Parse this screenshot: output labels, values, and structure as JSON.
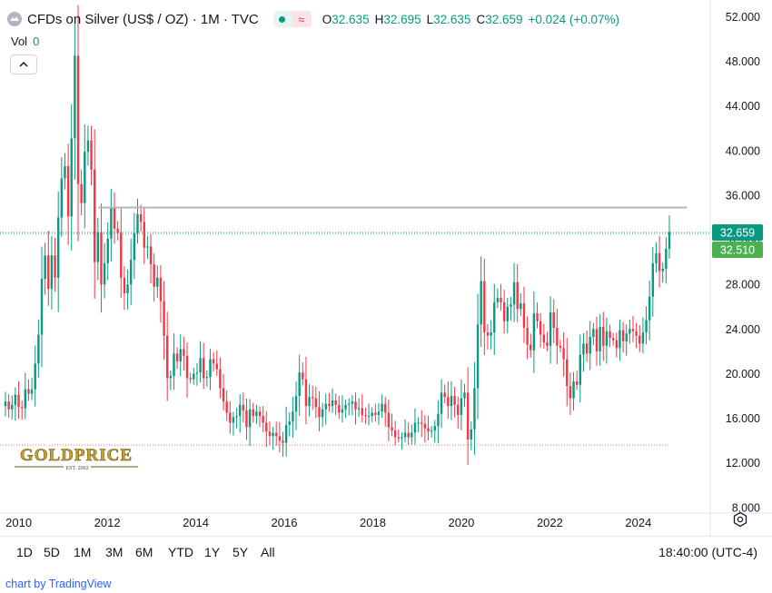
{
  "header": {
    "title": "CFDs on Silver (US$ / OZ) · 1M · TVC",
    "ohlc": [
      {
        "k": "O",
        "v": "32.635"
      },
      {
        "k": "H",
        "v": "32.695"
      },
      {
        "k": "L",
        "v": "32.635"
      },
      {
        "k": "C",
        "v": "32.659"
      },
      {
        "k": "",
        "v": "+0.024 (+0.07%)"
      }
    ],
    "approx_glyph": "≈"
  },
  "volume": {
    "label": "Vol",
    "value": "0"
  },
  "colors": {
    "up": "#089981",
    "down": "#f23645",
    "grid": "#f0f3fa",
    "text": "#131722",
    "accent": "#2962ff"
  },
  "chart_data": {
    "type": "candlestick",
    "xlabel": "",
    "ylabel": "",
    "ylim": [
      7.5,
      53.5
    ],
    "y_ticks": [
      "52.000",
      "48.000",
      "44.000",
      "40.000",
      "36.000",
      "32.000",
      "28.000",
      "24.000",
      "20.000",
      "16.000",
      "12.000",
      "8.000"
    ],
    "x_ticks": [
      "2010",
      "2012",
      "2014",
      "2016",
      "2018",
      "2020",
      "2022",
      "2024"
    ],
    "grid": false,
    "close_series": [
      17.5,
      16.8,
      17.2,
      18.1,
      17.0,
      16.9,
      18.6,
      18.2,
      18.6,
      20.9,
      23.5,
      28.5,
      30.6,
      27.6,
      30.6,
      28.6,
      34.0,
      37.5,
      38.6,
      34.1,
      41.1,
      48.5,
      37.0,
      35.3,
      39.9,
      40.9,
      38.3,
      30.0,
      32.7,
      28.0,
      29.9,
      32.1,
      34.9,
      33.0,
      32.6,
      28.6,
      27.2,
      28.0,
      30.2,
      32.6,
      34.3,
      33.6,
      31.3,
      31.4,
      29.8,
      27.8,
      28.6,
      26.5,
      23.4,
      19.6,
      19.8,
      21.8,
      21.1,
      22.2,
      21.6,
      19.6,
      19.5,
      20.0,
      20.1,
      21.4,
      19.6,
      19.7,
      21.3,
      20.9,
      20.4,
      18.7,
      17.5,
      16.5,
      15.6,
      16.1,
      16.2,
      17.2,
      16.7,
      15.2,
      16.8,
      16.2,
      16.6,
      16.2,
      15.6,
      14.8,
      14.4,
      14.7,
      14.4,
      14.0,
      13.8,
      15.4,
      15.7,
      16.6,
      18.0,
      20.1,
      19.5,
      17.1,
      17.9,
      17.8,
      17.0,
      16.1,
      16.8,
      17.3,
      17.1,
      17.6,
      17.2,
      16.5,
      16.8,
      17.2,
      17.3,
      17.5,
      16.8,
      16.9,
      16.3,
      16.2,
      16.2,
      16.5,
      16.3,
      16.6,
      17.3,
      16.5,
      15.2,
      14.9,
      14.3,
      14.2,
      14.3,
      14.7,
      14.3,
      14.7,
      15.6,
      15.6,
      15.5,
      15.1,
      14.8,
      14.9,
      15.3,
      16.4,
      18.3,
      17.9,
      17.1,
      18.0,
      17.2,
      16.3,
      17.8,
      18.3,
      14.1,
      15.0,
      18.7,
      24.4,
      28.3,
      23.7,
      23.4,
      23.7,
      26.4,
      26.8,
      26.4,
      24.7,
      26.0,
      26.2,
      28.2,
      25.8,
      26.3,
      24.1,
      22.6,
      22.1,
      25.4,
      24.7,
      23.5,
      22.8,
      22.5,
      25.5,
      24.1,
      22.5,
      22.3,
      21.3,
      18.9,
      17.8,
      19.3,
      19.0,
      21.7,
      22.7,
      21.8,
      23.3,
      24.0,
      22.0,
      24.2,
      22.5,
      23.8,
      23.2,
      23.0,
      22.3,
      23.9,
      22.9,
      23.6,
      24.0,
      23.8,
      23.4,
      22.7,
      23.7,
      24.8,
      26.9,
      29.9,
      30.8,
      29.2,
      29.4,
      31.2,
      32.7
    ]
  },
  "range_buttons": [
    "1D",
    "5D",
    "1M",
    "3M",
    "6M",
    "YTD",
    "1Y",
    "5Y",
    "All"
  ],
  "clock": "18:40:00 (UTC-4)",
  "price_labels": {
    "current": "32.659",
    "prev": "32.510"
  },
  "logo": {
    "text": "GOLDPRICE",
    "sub": "EST. 2002"
  },
  "footer": "chart by TradingView"
}
